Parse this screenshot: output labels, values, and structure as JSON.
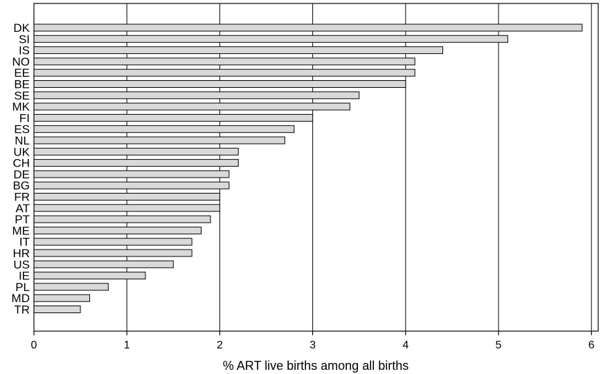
{
  "chart_data": {
    "type": "bar",
    "orientation": "horizontal",
    "categories": [
      "DK",
      "SI",
      "IS",
      "NO",
      "EE",
      "BE",
      "SE",
      "MK",
      "FI",
      "ES",
      "NL",
      "UK",
      "CH",
      "DE",
      "BG",
      "FR",
      "AT",
      "PT",
      "ME",
      "IT",
      "HR",
      "US",
      "IE",
      "PL",
      "MD",
      "TR"
    ],
    "values": [
      5.9,
      5.1,
      4.4,
      4.1,
      4.1,
      4.0,
      3.5,
      3.4,
      3.0,
      2.8,
      2.7,
      2.2,
      2.2,
      2.1,
      2.1,
      2.0,
      2.0,
      1.9,
      1.8,
      1.7,
      1.7,
      1.5,
      1.2,
      0.8,
      0.6,
      0.5
    ],
    "xlabel": "% ART live births among all births",
    "ylabel": "",
    "title": "",
    "xlim": [
      0,
      6
    ],
    "xticks": [
      "0",
      "1",
      "2",
      "3",
      "4",
      "5",
      "6"
    ],
    "grid": "vertical",
    "legend": "none",
    "colors": {
      "bar_fill": "#d9d9d9",
      "bar_stroke": "#000000",
      "grid": "#000000"
    }
  }
}
